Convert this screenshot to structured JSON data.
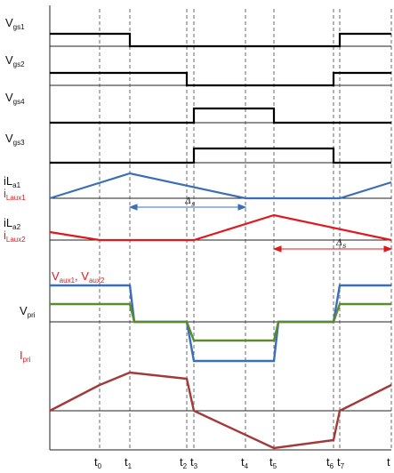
{
  "signals": {
    "vgs1": {
      "main": "V",
      "sub": "gs1"
    },
    "vgs2": {
      "main": "V",
      "sub": "gs2"
    },
    "vgs4": {
      "main": "V",
      "sub": "gs4"
    },
    "vgs3": {
      "main": "V",
      "sub": "gs3"
    },
    "ila1": {
      "main": "iL",
      "sub": "a1"
    },
    "ilaux1": {
      "main": "i",
      "sub": "Laux1"
    },
    "ila2": {
      "main": "iL",
      "sub": "a2"
    },
    "ilaux2": {
      "main": "i",
      "sub": "Laux2"
    },
    "vaux": {
      "main1": "V",
      "sub1": "aux1",
      "sep": ", ",
      "main2": "V",
      "sub2": "aux2"
    },
    "vpri": {
      "main": "V",
      "sub": "pri"
    },
    "ipri": {
      "main": "I",
      "sub": "pri"
    }
  },
  "delta": {
    "main": "Δ",
    "sub": "s"
  },
  "time_ticks": [
    {
      "main": "t",
      "sub": "0"
    },
    {
      "main": "t",
      "sub": "1"
    },
    {
      "main": "t",
      "sub": "2"
    },
    {
      "main": "t",
      "sub": "3"
    },
    {
      "main": "t",
      "sub": "4"
    },
    {
      "main": "t",
      "sub": "5"
    },
    {
      "main": "t",
      "sub": "6"
    },
    {
      "main": "t",
      "sub": "7"
    },
    {
      "main": "t",
      "sub": ""
    }
  ],
  "colors": {
    "gate": "#000000",
    "current1": "#3a6fb7",
    "current2": "#e0191e",
    "vaux": "#3a6fb7",
    "vpri": "#5c8a2e",
    "ipri": "#a23a3a",
    "grid": "#333333"
  }
}
